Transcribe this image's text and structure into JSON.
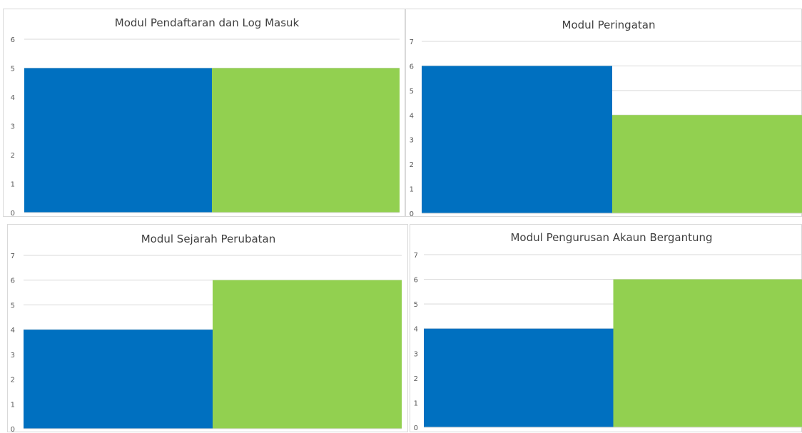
{
  "colors": {
    "series_a": "#0070C0",
    "series_b": "#92D050",
    "grid": "#D9D9D9"
  },
  "chart_data": [
    {
      "type": "bar",
      "title": "Modul Pendaftaran dan Log Masuk",
      "categories": [
        "",
        ""
      ],
      "values": [
        5,
        5
      ],
      "ylim": [
        0,
        6
      ],
      "yticks": [
        "0",
        "1",
        "2",
        "3",
        "4",
        "5",
        "6"
      ],
      "grid": true
    },
    {
      "type": "bar",
      "title": "Modul Peringatan",
      "categories": [
        "",
        ""
      ],
      "values": [
        6,
        4
      ],
      "ylim": [
        0,
        7
      ],
      "yticks": [
        "0",
        "1",
        "2",
        "3",
        "4",
        "5",
        "6",
        "7"
      ],
      "grid": true
    },
    {
      "type": "bar",
      "title": "Modul Sejarah Perubatan",
      "categories": [
        "",
        ""
      ],
      "values": [
        4,
        6
      ],
      "ylim": [
        0,
        7
      ],
      "yticks": [
        "0",
        "1",
        "2",
        "3",
        "4",
        "5",
        "6",
        "7"
      ],
      "grid": true
    },
    {
      "type": "bar",
      "title": "Modul Pengurusan Akaun Bergantung",
      "categories": [
        "",
        ""
      ],
      "values": [
        4,
        6
      ],
      "ylim": [
        0,
        7
      ],
      "yticks": [
        "0",
        "1",
        "2",
        "3",
        "4",
        "5",
        "6",
        "7"
      ],
      "grid": true
    }
  ]
}
